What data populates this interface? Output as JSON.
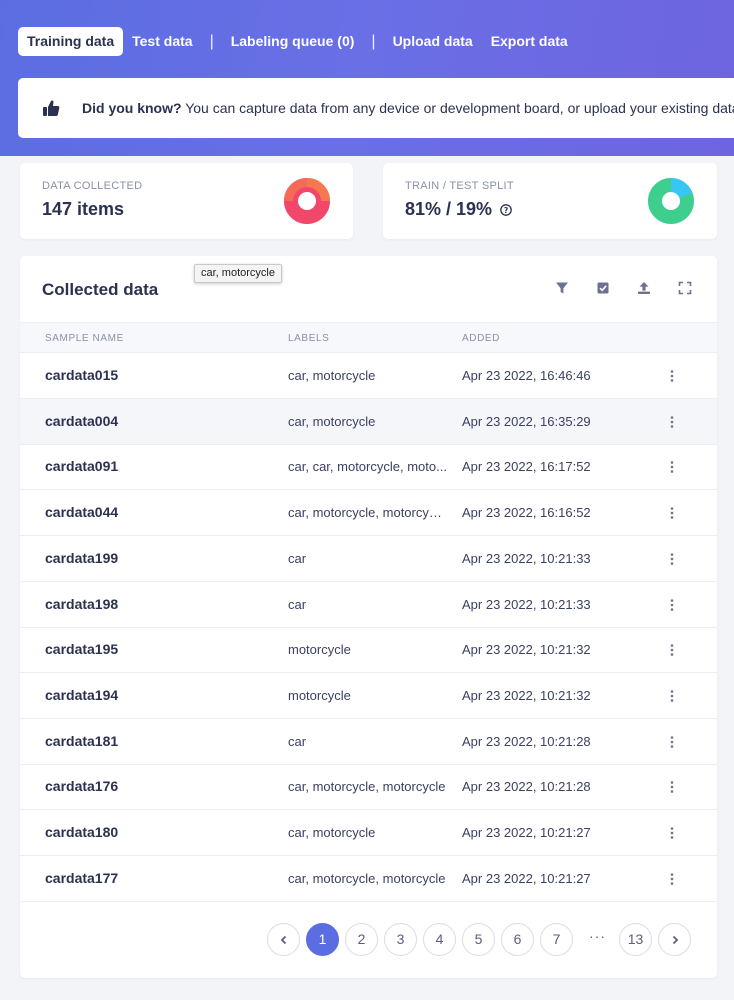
{
  "tabs": [
    {
      "label": "Training data"
    },
    {
      "label": "Test data"
    },
    {
      "label": "Labeling queue (0)"
    },
    {
      "label": "Upload data"
    },
    {
      "label": "Export data"
    }
  ],
  "tip": {
    "icon": "thumbs-up-icon",
    "bold": "Did you know?",
    "text": " You can capture data from any device or development board, or upload your existing datasets"
  },
  "stats": {
    "collected": {
      "title": "DATA COLLECTED",
      "value": "147 items"
    },
    "split": {
      "title": "TRAIN / TEST SPLIT",
      "value": "81% / 19%",
      "train_pct": 81,
      "test_pct": 19
    }
  },
  "colors": {
    "accent": "#5b6ee1",
    "collected_donut": "#f0476b",
    "collected_donut_segment": "#f5784f",
    "train_green": "#3ecf8e",
    "test_blue": "#38c6f4"
  },
  "table": {
    "title": "Collected data",
    "tooltip": "car, motorcycle",
    "toolbar_icons": [
      "filter-icon",
      "select-checkbox-icon",
      "upload-icon",
      "expand-icon"
    ],
    "headers": {
      "name": "SAMPLE NAME",
      "labels": "LABELS",
      "added": "ADDED"
    },
    "rows": [
      {
        "name": "cardata015",
        "labels": "car, motorcycle",
        "added": "Apr 23 2022, 16:46:46"
      },
      {
        "name": "cardata004",
        "labels": "car, motorcycle",
        "added": "Apr 23 2022, 16:35:29"
      },
      {
        "name": "cardata091",
        "labels": "car, car, motorcycle, moto...",
        "added": "Apr 23 2022, 16:17:52"
      },
      {
        "name": "cardata044",
        "labels": "car, motorcycle, motorcycl...",
        "added": "Apr 23 2022, 16:16:52"
      },
      {
        "name": "cardata199",
        "labels": "car",
        "added": "Apr 23 2022, 10:21:33"
      },
      {
        "name": "cardata198",
        "labels": "car",
        "added": "Apr 23 2022, 10:21:33"
      },
      {
        "name": "cardata195",
        "labels": "motorcycle",
        "added": "Apr 23 2022, 10:21:32"
      },
      {
        "name": "cardata194",
        "labels": "motorcycle",
        "added": "Apr 23 2022, 10:21:32"
      },
      {
        "name": "cardata181",
        "labels": "car",
        "added": "Apr 23 2022, 10:21:28"
      },
      {
        "name": "cardata176",
        "labels": "car, motorcycle, motorcycle",
        "added": "Apr 23 2022, 10:21:28"
      },
      {
        "name": "cardata180",
        "labels": "car, motorcycle",
        "added": "Apr 23 2022, 10:21:27"
      },
      {
        "name": "cardata177",
        "labels": "car, motorcycle, motorcycle",
        "added": "Apr 23 2022, 10:21:27"
      }
    ]
  },
  "pagination": {
    "pages": [
      "1",
      "2",
      "3",
      "4",
      "5",
      "6",
      "7"
    ],
    "ellipsis": "···",
    "last": "13",
    "current": "1"
  }
}
